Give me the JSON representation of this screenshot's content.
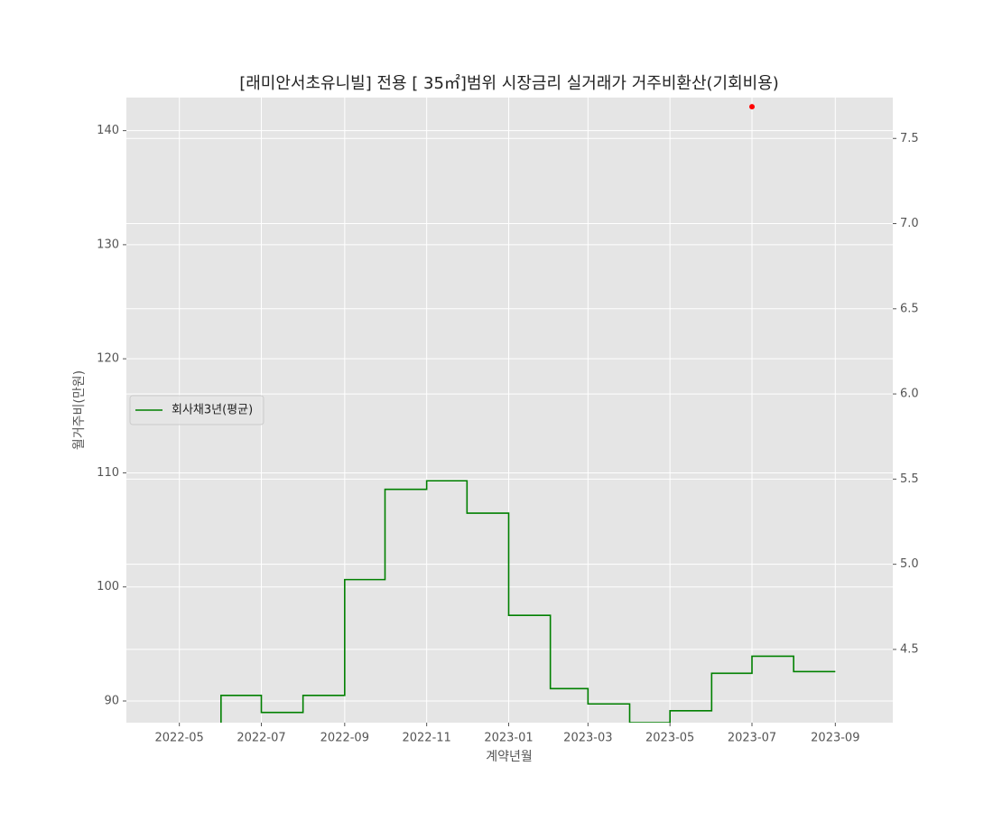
{
  "chart_data": {
    "type": "line",
    "title": "[래미안서초유니빌] 전용 [ 35㎡]범위 시장금리 실거래가 거주비환산(기회비용)",
    "x_label": "계약년월",
    "y_label": "월거주비(만원)",
    "xlim": [
      "2022-04",
      "2023-10"
    ],
    "xticks": [
      "2022-05",
      "2022-07",
      "2022-09",
      "2022-11",
      "2023-01",
      "2023-03",
      "2023-05",
      "2023-07",
      "2023-09"
    ],
    "ylim": [
      88.1,
      142.9
    ],
    "yticks": [
      90,
      100,
      110,
      120,
      130,
      140
    ],
    "y2lim": [
      4.07,
      7.74
    ],
    "y2ticks": [
      4.5,
      {
        "value": 5,
        "label": "5.0"
      },
      5.5,
      {
        "value": 6,
        "label": "6.0"
      },
      6.5,
      {
        "value": 7,
        "label": "7.0"
      },
      7.5
    ],
    "grid": true,
    "legend": "center left",
    "series": [
      {
        "name": "회사채3년(평균)",
        "color": "#008000",
        "axis": "y2",
        "step": "pre",
        "x": [
          "2022-06",
          "2022-07",
          "2022-08",
          "2022-09",
          "2022-10",
          "2022-11",
          "2022-12",
          "2023-01",
          "2023-02",
          "2023-03",
          "2023-04",
          "2023-05",
          "2023-06",
          "2023-07",
          "2023-08",
          "2023-09"
        ],
        "values": [
          4.0,
          4.23,
          4.13,
          4.23,
          4.91,
          5.44,
          5.49,
          5.3,
          4.7,
          4.27,
          4.18,
          4.07,
          4.14,
          4.36,
          4.46,
          4.37
        ]
      },
      {
        "color": "#ff0000",
        "axis": "y",
        "marker": "dot",
        "x": [
          "2023-07"
        ],
        "values": [
          142.1
        ]
      }
    ]
  }
}
